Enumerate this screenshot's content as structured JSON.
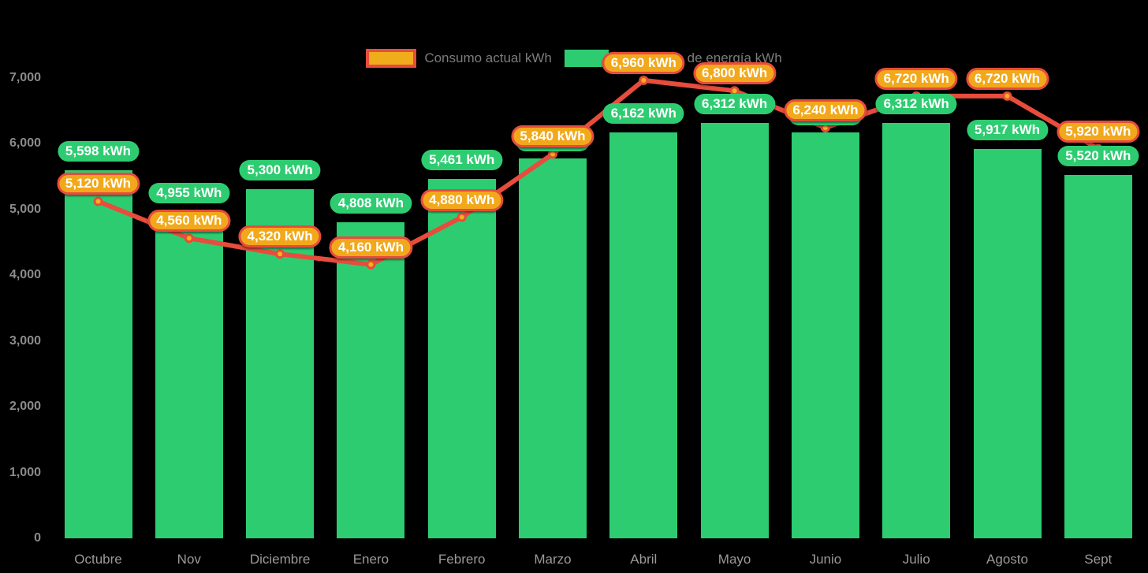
{
  "chart_data": {
    "type": "bar+line",
    "unit": "kWh",
    "categories": [
      "Octubre",
      "Nov",
      "Diciembre",
      "Enero",
      "Febrero",
      "Marzo",
      "Abril",
      "Mayo",
      "Junio",
      "Julio",
      "Agosto",
      "Sept"
    ],
    "series": [
      {
        "name": "Consumo actual kWh",
        "type": "line",
        "color": "#E74C3C",
        "marker_color": "#F5B318",
        "values": [
          5120,
          4560,
          4320,
          4160,
          4880,
          5840,
          6960,
          6800,
          6240,
          6720,
          6720,
          5920
        ],
        "labels": [
          "5,120 kWh",
          "4,560 kWh",
          "4,320 kWh",
          "4,160 kWh",
          "4,880 kWh",
          "5,840 kWh",
          "6,960 kWh",
          "6,800 kWh",
          "6,240 kWh",
          "6,720 kWh",
          "6,720 kWh",
          "5,920 kWh"
        ]
      },
      {
        "name": "Producción de energía kWh",
        "type": "bar",
        "color": "#2ECC71",
        "values": [
          5598,
          4955,
          5300,
          4808,
          5461,
          5772,
          6162,
          6312,
          6168,
          6312,
          5917,
          5520
        ],
        "labels": [
          "5,598 kWh",
          "4,955 kWh",
          "5,300 kWh",
          "4,808 kWh",
          "5,461 kWh",
          null,
          "6,162 kWh",
          "6,312 kWh",
          null,
          "6,312 kWh",
          "5,917 kWh",
          "5,520 kWh"
        ]
      }
    ],
    "ylim": [
      0,
      7000
    ],
    "yticks": [
      {
        "v": 0,
        "label": "0"
      },
      {
        "v": 1000,
        "label": "1,000"
      },
      {
        "v": 2000,
        "label": "2,000"
      },
      {
        "v": 3000,
        "label": "3,000"
      },
      {
        "v": 4000,
        "label": "4,000"
      },
      {
        "v": 5000,
        "label": "5,000"
      },
      {
        "v": 6000,
        "label": "6,000"
      },
      {
        "v": 7000,
        "label": "7,000"
      }
    ],
    "legend_position": "top-center",
    "grid": false
  },
  "colors": {
    "background": "#000000",
    "bar_green": "#2ECC71",
    "line_red": "#E74C3C",
    "pill_orange": "#F2A81B",
    "marker_orange": "#F5B318",
    "axis_gray": "#9A9A9A",
    "pill_text": "#FFFFFF"
  }
}
